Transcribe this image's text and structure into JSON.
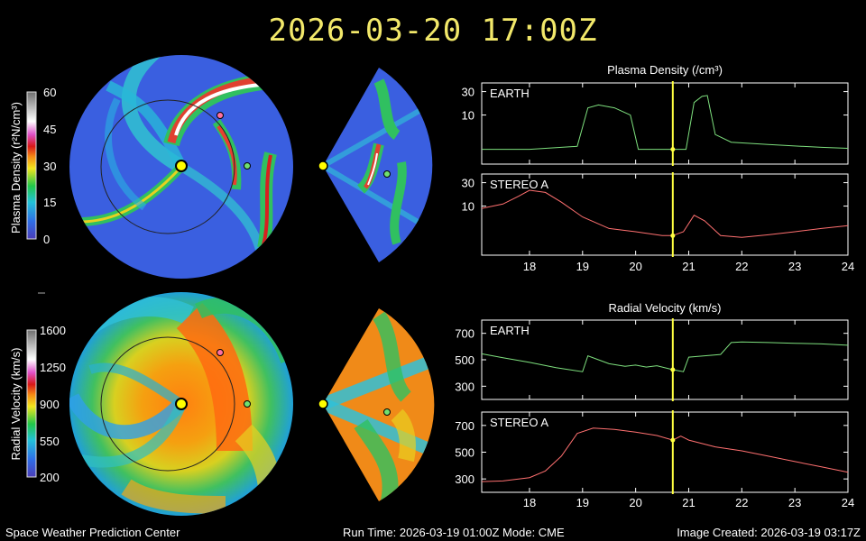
{
  "header": {
    "timestamp": "2026-03-20 17:00Z"
  },
  "footer": {
    "left": "Space Weather Prediction Center",
    "center": "Run Time: 2026-03-19 01:00Z  Mode: CME",
    "right": "Image Created: 2026-03-19 03:17Z"
  },
  "colorbars": {
    "density": {
      "label": "Plasma Density (r²N/cm³)",
      "ticks": [
        "60",
        "45",
        "30",
        "15",
        "0"
      ],
      "range": [
        0,
        60
      ]
    },
    "velocity": {
      "label": "Radial Velocity (km/s)",
      "ticks": [
        "1600",
        "1250",
        "900",
        "550",
        "200"
      ],
      "range": [
        200,
        1600
      ]
    }
  },
  "colors": {
    "earth_line": "#7ee07e",
    "stereo_line": "#ff7070",
    "cursor": "#ffff40",
    "disk_background": "#3a5fe0",
    "sun": "#ffff00"
  },
  "chart_data": [
    {
      "type": "line",
      "title": "Plasma Density (/cm³)",
      "xlim": [
        17.1,
        24
      ],
      "x_ticks": [
        "18",
        "19",
        "20",
        "21",
        "22",
        "23",
        "24"
      ],
      "cursor_x": 20.7,
      "panels": [
        {
          "label": "EARTH",
          "ylim": [
            1,
            45
          ],
          "y_ticks": [
            "30",
            "10"
          ],
          "x": [
            17.1,
            18.0,
            18.9,
            19.1,
            19.3,
            19.6,
            19.9,
            20.05,
            20.4,
            20.6,
            20.8,
            20.95,
            21.1,
            21.25,
            21.35,
            21.5,
            21.8,
            22.5,
            23.5,
            24.0
          ],
          "values": [
            2,
            2,
            2.3,
            14,
            16,
            14,
            10,
            2,
            2,
            2,
            2,
            2,
            18,
            24,
            25,
            4,
            2.8,
            2.5,
            2.2,
            2.1
          ]
        },
        {
          "label": "STEREO A",
          "ylim": [
            1,
            45
          ],
          "y_ticks": [
            "30",
            "10"
          ],
          "x": [
            17.1,
            17.5,
            17.8,
            18.0,
            18.3,
            18.6,
            19.0,
            19.5,
            20.0,
            20.5,
            20.7,
            20.9,
            21.1,
            21.3,
            21.6,
            22.0,
            22.5,
            23.0,
            23.5,
            24.0
          ],
          "values": [
            9,
            11,
            16,
            21,
            19,
            12,
            6,
            3.5,
            3,
            2.5,
            2.5,
            3,
            6.5,
            5,
            2.5,
            2.3,
            2.6,
            3,
            3.5,
            4
          ]
        }
      ]
    },
    {
      "type": "line",
      "title": "Radial Velocity (km/s)",
      "xlim": [
        17.1,
        24
      ],
      "x_ticks": [
        "18",
        "19",
        "20",
        "21",
        "22",
        "23",
        "24"
      ],
      "cursor_x": 20.7,
      "panels": [
        {
          "label": "EARTH",
          "ylim": [
            200,
            800
          ],
          "y_ticks": [
            "700",
            "500",
            "300"
          ],
          "x": [
            17.1,
            17.5,
            18.0,
            18.5,
            19.0,
            19.1,
            19.3,
            19.5,
            19.8,
            20.0,
            20.2,
            20.4,
            20.7,
            20.9,
            21.0,
            21.3,
            21.6,
            21.8,
            22.0,
            22.5,
            23.0,
            23.5,
            24.0
          ],
          "values": [
            545,
            515,
            480,
            440,
            410,
            530,
            500,
            470,
            450,
            460,
            445,
            455,
            425,
            410,
            520,
            530,
            540,
            630,
            635,
            630,
            625,
            620,
            610
          ]
        },
        {
          "label": "STEREO A",
          "ylim": [
            200,
            800
          ],
          "y_ticks": [
            "700",
            "500",
            "300"
          ],
          "x": [
            17.1,
            17.5,
            18.0,
            18.3,
            18.6,
            18.9,
            19.2,
            19.6,
            20.0,
            20.4,
            20.7,
            20.85,
            21.0,
            21.5,
            22.0,
            22.5,
            23.0,
            23.5,
            24.0
          ],
          "values": [
            280,
            285,
            310,
            360,
            470,
            640,
            680,
            670,
            650,
            625,
            590,
            620,
            590,
            540,
            510,
            470,
            430,
            390,
            350
          ]
        }
      ]
    }
  ]
}
